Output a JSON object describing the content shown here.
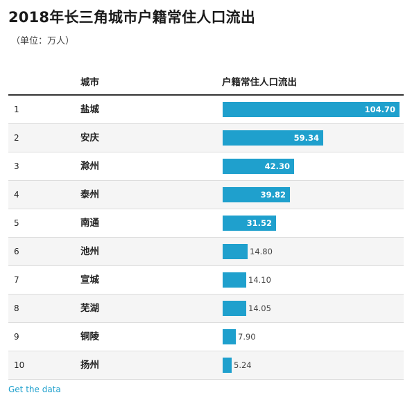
{
  "title": "2018年长三角城市户籍常住人口流出",
  "subtitle": "（单位：万人）",
  "table": {
    "city_header": "城市",
    "value_header": "户籍常住人口流出"
  },
  "footer": {
    "link_label": "Get the data"
  },
  "colors": {
    "bar": "#1fa0cd",
    "link": "#1fa0cd"
  },
  "chart_data": {
    "type": "bar",
    "title": "2018年长三角城市户籍常住人口流出",
    "subtitle": "（单位：万人）",
    "orientation": "horizontal",
    "columns": [
      "城市",
      "户籍常住人口流出"
    ],
    "ranks": [
      "1",
      "2",
      "3",
      "4",
      "5",
      "6",
      "7",
      "8",
      "9",
      "10"
    ],
    "categories": [
      "盐城",
      "安庆",
      "滁州",
      "泰州",
      "南通",
      "池州",
      "宣城",
      "芜湖",
      "铜陵",
      "扬州"
    ],
    "values": [
      104.7,
      59.34,
      42.3,
      39.82,
      31.52,
      14.8,
      14.1,
      14.05,
      7.9,
      5.24
    ],
    "value_labels": [
      "104.70",
      "59.34",
      "42.30",
      "39.82",
      "31.52",
      "14.80",
      "14.10",
      "14.05",
      "7.90",
      "5.24"
    ],
    "xlim": [
      0,
      104.7
    ]
  }
}
